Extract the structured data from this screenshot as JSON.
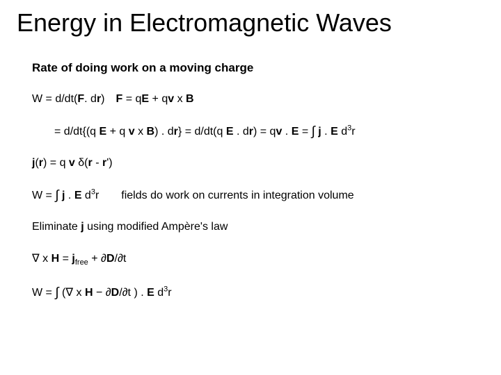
{
  "page": {
    "title": "Energy in Electromagnetic Waves",
    "subheading": "Rate of doing work on a moving charge",
    "background_color": "#ffffff",
    "text_color": "#000000",
    "title_fontsize": 36,
    "body_fontsize": 16
  },
  "lines": {
    "l1a": "W = d/dt(",
    "l1b": "F",
    "l1c": ". d",
    "l1d": "r",
    "l1e": ") ",
    "l1f": "F",
    "l1g": " = q",
    "l1h": "E",
    "l1i": " + q",
    "l1j": "v",
    "l1k": " x ",
    "l1l": "B",
    "l2a": "= d/dt{(q ",
    "l2b": "E",
    "l2c": " + q ",
    "l2d": "v",
    "l2e": " x ",
    "l2f": "B",
    "l2g": ") . d",
    "l2h": "r",
    "l2i": "} = d/dt(q ",
    "l2j": "E",
    "l2k": " . d",
    "l2l": "r",
    "l2m": ") = q",
    "l2n": "v",
    "l2o": " . ",
    "l2p": "E",
    "l2q": " = ",
    "l2r": "∫",
    "l2s": " ",
    "l2t": "j",
    "l2u": " . ",
    "l2v": "E",
    "l2w": " d",
    "l2x": "3",
    "l2y": "r",
    "l3a": "j",
    "l3b": "(",
    "l3c": "r",
    "l3d": ") = q ",
    "l3e": "v",
    "l3f": " δ(",
    "l3g": "r",
    "l3h": " - ",
    "l3i": "r",
    "l3j": "')",
    "l4a": "W = ",
    "l4b": "∫",
    "l4c": " ",
    "l4d": "j",
    "l4e": " . ",
    "l4f": "E",
    "l4g": " d",
    "l4h": "3",
    "l4i": "r",
    "l4note": "  fields do work on currents in integration volume",
    "l5": "Eliminate ",
    "l5b": "j",
    "l5c": " using modified Ampère's law",
    "l6a": "∇ x ",
    "l6b": "H",
    "l6c": " = ",
    "l6d": "j",
    "l6e": "free",
    "l6f": " + ∂",
    "l6g": "D",
    "l6h": "/∂t",
    "l7a": "W = ",
    "l7b": "∫",
    "l7c": " (∇ x ",
    "l7d": "H",
    "l7e": " − ∂",
    "l7f": "D",
    "l7g": "/∂t ) . ",
    "l7h": "E",
    "l7i": " d",
    "l7j": "3",
    "l7k": "r"
  }
}
